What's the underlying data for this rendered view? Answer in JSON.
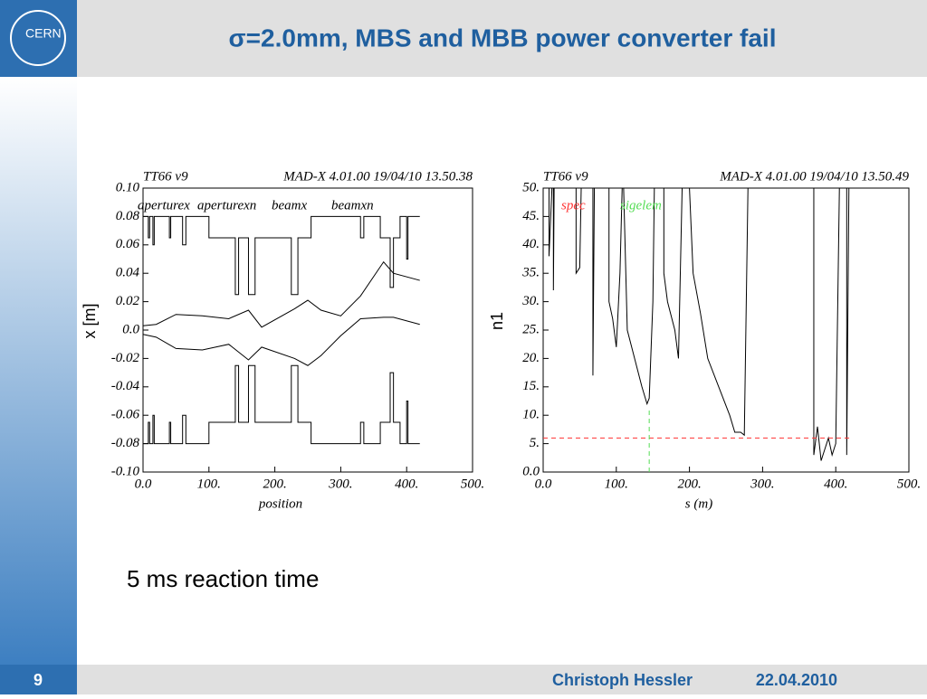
{
  "header": {
    "logo": "CERN",
    "title": "σ=2.0mm, MBS and MBB power converter fail"
  },
  "chart_data": [
    {
      "type": "line",
      "top_left_note": "TT66 v9",
      "top_right_note": "MAD-X 4.01.00  19/04/10 13.50.38",
      "ylabel": "x [m]",
      "xlabel": "position",
      "xlim": [
        0,
        500
      ],
      "xticks": [
        {
          "value": 0,
          "label": "0.0"
        },
        {
          "value": 100,
          "label": "100."
        },
        {
          "value": 200,
          "label": "200."
        },
        {
          "value": 300,
          "label": "300."
        },
        {
          "value": 400,
          "label": "400."
        },
        {
          "value": 500,
          "label": "500."
        }
      ],
      "ylim": [
        -0.1,
        0.1
      ],
      "yticks": [
        {
          "value": 0.1,
          "label": "0.10"
        },
        {
          "value": 0.08,
          "label": "0.08"
        },
        {
          "value": 0.06,
          "label": "0.06"
        },
        {
          "value": 0.04,
          "label": "0.04"
        },
        {
          "value": 0.02,
          "label": "0.02"
        },
        {
          "value": 0,
          "label": "0.0"
        },
        {
          "value": -0.02,
          "label": "-0.02"
        },
        {
          "value": -0.04,
          "label": "-0.04"
        },
        {
          "value": -0.06,
          "label": "-0.06"
        },
        {
          "value": -0.08,
          "label": "-0.08"
        },
        {
          "value": -0.1,
          "label": "-0.10"
        }
      ],
      "series": [
        {
          "name": "aperturex",
          "color": "#000000",
          "x": [
            0,
            8,
            8,
            10,
            10,
            15,
            15,
            17,
            17,
            40,
            40,
            42,
            42,
            60,
            60,
            65,
            65,
            100,
            100,
            140,
            140,
            145,
            145,
            160,
            160,
            170,
            170,
            225,
            225,
            235,
            235,
            255,
            255,
            330,
            330,
            335,
            335,
            360,
            360,
            375,
            375,
            380,
            380,
            390,
            390,
            400,
            400,
            402,
            402,
            420
          ],
          "values": [
            0.08,
            0.08,
            0.065,
            0.065,
            0.08,
            0.08,
            0.06,
            0.06,
            0.08,
            0.08,
            0.065,
            0.065,
            0.08,
            0.08,
            0.06,
            0.06,
            0.08,
            0.08,
            0.065,
            0.065,
            0.025,
            0.025,
            0.065,
            0.065,
            0.025,
            0.025,
            0.065,
            0.065,
            0.025,
            0.025,
            0.065,
            0.065,
            0.08,
            0.08,
            0.065,
            0.065,
            0.08,
            0.08,
            0.065,
            0.065,
            0.03,
            0.03,
            0.065,
            0.065,
            0.08,
            0.08,
            0.05,
            0.05,
            0.08,
            0.08
          ]
        },
        {
          "name": "aperturexn",
          "color": "#000000",
          "x": [
            0,
            8,
            8,
            10,
            10,
            15,
            15,
            17,
            17,
            40,
            40,
            42,
            42,
            60,
            60,
            65,
            65,
            100,
            100,
            140,
            140,
            145,
            145,
            160,
            160,
            170,
            170,
            225,
            225,
            235,
            235,
            255,
            255,
            330,
            330,
            335,
            335,
            360,
            360,
            375,
            375,
            380,
            380,
            390,
            390,
            400,
            400,
            402,
            402,
            420
          ],
          "values": [
            -0.08,
            -0.08,
            -0.065,
            -0.065,
            -0.08,
            -0.08,
            -0.06,
            -0.06,
            -0.08,
            -0.08,
            -0.065,
            -0.065,
            -0.08,
            -0.08,
            -0.06,
            -0.06,
            -0.08,
            -0.08,
            -0.065,
            -0.065,
            -0.025,
            -0.025,
            -0.065,
            -0.065,
            -0.025,
            -0.025,
            -0.065,
            -0.065,
            -0.025,
            -0.025,
            -0.065,
            -0.065,
            -0.08,
            -0.08,
            -0.065,
            -0.065,
            -0.08,
            -0.08,
            -0.065,
            -0.065,
            -0.03,
            -0.03,
            -0.065,
            -0.065,
            -0.08,
            -0.08,
            -0.05,
            -0.05,
            -0.08,
            -0.08
          ]
        },
        {
          "name": "beamx",
          "color": "#000000",
          "x": [
            0,
            20,
            50,
            90,
            130,
            160,
            180,
            230,
            250,
            270,
            300,
            330,
            365,
            380,
            420
          ],
          "values": [
            0.003,
            0.004,
            0.011,
            0.01,
            0.008,
            0.014,
            0.002,
            0.015,
            0.021,
            0.014,
            0.01,
            0.024,
            0.048,
            0.04,
            0.035
          ]
        },
        {
          "name": "beamxn",
          "color": "#000000",
          "x": [
            0,
            20,
            50,
            90,
            130,
            160,
            180,
            230,
            250,
            270,
            300,
            330,
            365,
            380,
            420
          ],
          "values": [
            -0.003,
            -0.005,
            -0.013,
            -0.014,
            -0.01,
            -0.021,
            -0.012,
            -0.02,
            -0.025,
            -0.018,
            -0.004,
            0.008,
            0.009,
            0.009,
            0.004
          ]
        }
      ]
    },
    {
      "type": "line",
      "top_left_note": "TT66 v9",
      "top_right_note": "MAD-X 4.01.00  19/04/10 13.50.49",
      "ylabel": "n1",
      "xlabel": "s (m)",
      "xlim": [
        0,
        500
      ],
      "xticks": [
        {
          "value": 0,
          "label": "0.0"
        },
        {
          "value": 100,
          "label": "100."
        },
        {
          "value": 200,
          "label": "200."
        },
        {
          "value": 300,
          "label": "300."
        },
        {
          "value": 400,
          "label": "400."
        },
        {
          "value": 500,
          "label": "500."
        }
      ],
      "ylim": [
        0,
        50
      ],
      "yticks": [
        {
          "value": 0,
          "label": "0.0"
        },
        {
          "value": 5,
          "label": "5."
        },
        {
          "value": 10,
          "label": "10."
        },
        {
          "value": 15,
          "label": "15."
        },
        {
          "value": 20,
          "label": "20."
        },
        {
          "value": 25,
          "label": "25."
        },
        {
          "value": 30,
          "label": "30."
        },
        {
          "value": 35,
          "label": "35."
        },
        {
          "value": 40,
          "label": "40."
        },
        {
          "value": 45,
          "label": "45."
        },
        {
          "value": 50,
          "label": "50."
        }
      ],
      "series": [
        {
          "color": "#000000",
          "x": [
            0,
            8,
            8,
            12,
            14,
            14,
            15,
            45,
            45,
            50,
            52,
            68,
            68,
            70,
            90,
            90,
            95,
            100,
            105,
            108,
            110,
            115,
            125,
            135,
            142,
            145,
            150,
            152,
            165,
            165,
            170,
            180,
            185,
            190,
            200,
            205,
            215,
            225,
            240,
            255,
            262,
            270,
            275,
            280,
            370,
            370,
            375,
            380,
            385,
            390,
            395,
            400,
            405,
            415,
            415,
            418,
            420
          ],
          "values": [
            50,
            50,
            38,
            50,
            50,
            32,
            50,
            50,
            35,
            36,
            50,
            50,
            17,
            50,
            50,
            30,
            27,
            22,
            35,
            50,
            50,
            25,
            20,
            15,
            12,
            13,
            30,
            50,
            50,
            35,
            30,
            25,
            20,
            50,
            50,
            35,
            28,
            20,
            15,
            10,
            7,
            7,
            6.5,
            50,
            50,
            3,
            8,
            2,
            4,
            6,
            3,
            5,
            50,
            50,
            3,
            50,
            50
          ]
        },
        {
          "name": "spec",
          "color": "#ff3333",
          "dash": true,
          "x": [
            0,
            420
          ],
          "values": [
            6,
            6
          ]
        },
        {
          "name": "sigelem",
          "color": "#55dd55",
          "dash": true,
          "x": [
            145,
            145
          ],
          "values": [
            0,
            11
          ]
        }
      ]
    }
  ],
  "body_text": "5 ms reaction time",
  "footer": {
    "page": "9",
    "author": "Christoph Hessler",
    "date": "22.04.2010"
  }
}
